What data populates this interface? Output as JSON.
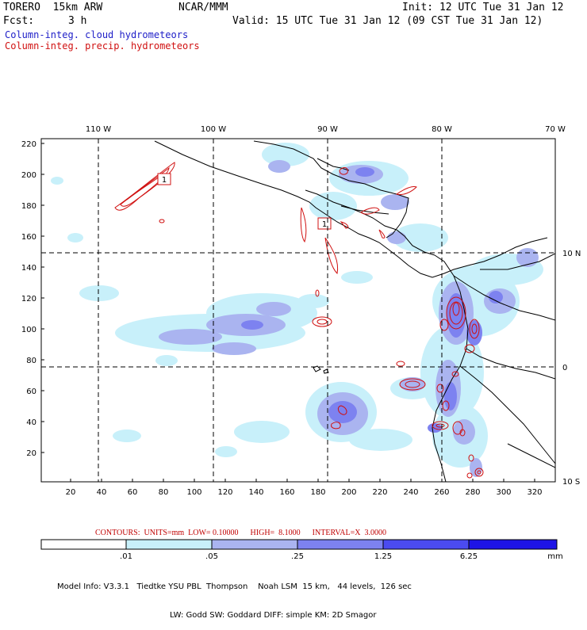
{
  "header": {
    "model_name": "TORERO  15km ARW",
    "institution": "NCAR/MMM",
    "init_time": "Init: 12 UTC Tue 31 Jan 12",
    "forecast_label": "Fcst:",
    "forecast_hours": "3 h",
    "valid_time": "Valid: 15 UTC Tue 31 Jan 12 (09 CST Tue 31 Jan 12)",
    "field1": "Column-integ. cloud hydrometeors",
    "field2": "Column-integ. precip. hydrometeors",
    "field1_color": "#2020c8",
    "field2_color": "#d01010"
  },
  "map": {
    "top_lon_labels": [
      "110 W",
      "100 W",
      "90 W",
      "80 W",
      "70 W"
    ],
    "right_lat_labels": [
      "10 N",
      "0",
      "10 S"
    ],
    "y_ticks": [
      "20",
      "40",
      "60",
      "80",
      "100",
      "120",
      "140",
      "160",
      "180",
      "200",
      "220"
    ],
    "x_ticks": [
      "20",
      "40",
      "60",
      "80",
      "100",
      "120",
      "140",
      "160",
      "180",
      "200",
      "220",
      "240",
      "260",
      "280",
      "300",
      "320"
    ],
    "contour_box_labels": [
      "1",
      "1"
    ]
  },
  "contours": {
    "units_label": "CONTOURS:  UNITS=mm  LOW= 0.10000      HIGH=  8.1000      INTERVAL=X  3.0000"
  },
  "colorbar": {
    "levels": [
      ".01",
      ".05",
      ".25",
      "1.25",
      "6.25"
    ],
    "unit": "mm",
    "colors": [
      "#ffffff",
      "#c8f0fa",
      "#aab4f0",
      "#7d82f0",
      "#4b4bf0",
      "#1e14e6"
    ]
  },
  "model_info": {
    "line1": "Model Info: V3.3.1   Tiedtke YSU PBL  Thompson    Noah LSM  15 km,   44 levels,  126 sec",
    "line2": "LW: Godd SW: Goddard DIFF: simple KM: 2D Smagor"
  }
}
